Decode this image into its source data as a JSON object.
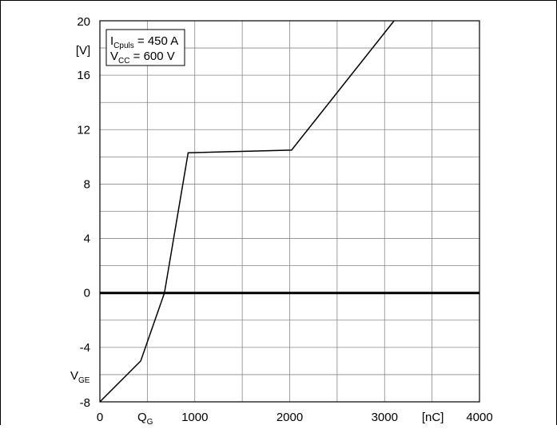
{
  "chart_data": {
    "type": "line",
    "x": [
      0,
      430,
      680,
      930,
      2020,
      3100
    ],
    "series": [
      {
        "values": [
          -8,
          -5,
          0,
          10.3,
          10.5,
          20
        ]
      }
    ],
    "xlim": [
      0,
      4000
    ],
    "ylim": [
      -8,
      20
    ],
    "x_ticks": [
      0,
      500,
      1000,
      1500,
      2000,
      2500,
      3000,
      3500,
      4000
    ],
    "y_ticks": [
      -8,
      -6,
      -4,
      -2,
      0,
      2,
      4,
      6,
      8,
      10,
      12,
      14,
      16,
      18,
      20
    ],
    "x_tick_labels": [
      {
        "value": 0,
        "label": "0"
      },
      {
        "value": 1000,
        "label": "1000"
      },
      {
        "value": 2000,
        "label": "2000"
      },
      {
        "value": 3000,
        "label": "3000"
      },
      {
        "value": 4000,
        "label": "4000"
      }
    ],
    "y_tick_labels": [
      {
        "value": 20,
        "label": "20"
      },
      {
        "value": 16,
        "label": "16"
      },
      {
        "value": 12,
        "label": "12"
      },
      {
        "value": 8,
        "label": "8"
      },
      {
        "value": 4,
        "label": "4"
      },
      {
        "value": 0,
        "label": "0"
      },
      {
        "value": -4,
        "label": "-4"
      },
      {
        "value": -8,
        "label": "-8"
      }
    ],
    "xlabel": {
      "main": "Q",
      "sub": "G"
    },
    "x_unit": "[nC]",
    "ylabel": {
      "main": "V",
      "sub": "GE"
    },
    "y_unit": "[V]",
    "zero_line": true,
    "grid": true,
    "annotation": {
      "line1": {
        "main": "I",
        "sub": "Cpuls",
        "rest": " = 450 A"
      },
      "line2": {
        "main": "V",
        "sub": "CC",
        "rest": " = 600 V"
      }
    },
    "colors": {
      "line": "#000000",
      "grid": "#888888",
      "axis": "#000000"
    }
  }
}
